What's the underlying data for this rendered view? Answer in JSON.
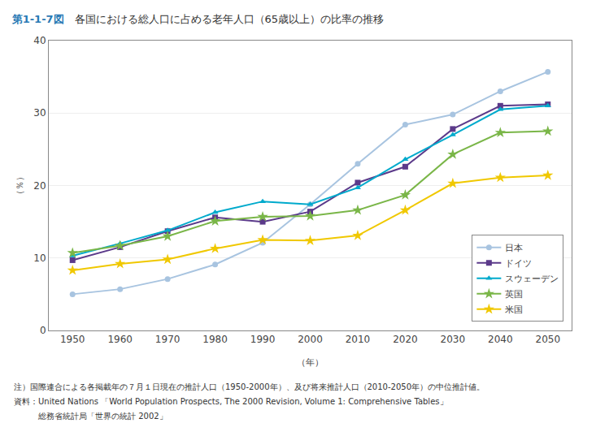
{
  "chart_data": {
    "type": "line",
    "title": "第1-1-7図",
    "subtitle": "　各国における総人口に占める老年人口（65歳以上）の比率の推移",
    "x_label": "（年）",
    "y_label": "（％）",
    "x": [
      1950,
      1960,
      1970,
      1980,
      1990,
      2000,
      2010,
      2020,
      2030,
      2040,
      2050
    ],
    "series": [
      {
        "name": "日本",
        "color": "#a8c4e0",
        "marker": "circle",
        "values": [
          5.0,
          5.7,
          7.1,
          9.1,
          12.1,
          17.4,
          23.0,
          28.4,
          29.8,
          33.0,
          35.7
        ]
      },
      {
        "name": "ドイツ",
        "color": "#5b3a8a",
        "marker": "square",
        "values": [
          9.7,
          11.5,
          13.7,
          15.6,
          15.0,
          16.4,
          20.4,
          22.6,
          27.8,
          31.0,
          31.2
        ]
      },
      {
        "name": "スウェーデン",
        "color": "#00aacc",
        "marker": "triangle-up",
        "values": [
          10.3,
          12.0,
          13.8,
          16.3,
          17.8,
          17.4,
          19.7,
          23.6,
          27.0,
          30.5,
          31.0
        ]
      },
      {
        "name": "英国",
        "color": "#7ab648",
        "marker": "star",
        "values": [
          10.7,
          11.7,
          13.0,
          15.1,
          15.7,
          15.8,
          16.6,
          18.7,
          24.3,
          27.3,
          27.5
        ]
      },
      {
        "name": "米国",
        "color": "#f0c800",
        "marker": "star",
        "values": [
          8.3,
          9.2,
          9.8,
          11.3,
          12.5,
          12.4,
          13.1,
          16.6,
          20.3,
          21.1,
          21.4
        ]
      }
    ],
    "xlim": [
      1945,
      2055
    ],
    "xticks": [
      1950,
      1960,
      1970,
      1980,
      1990,
      2000,
      2010,
      2020,
      2030,
      2040,
      2050
    ],
    "ylim": [
      0,
      40
    ],
    "yticks": [
      0,
      10,
      20,
      30,
      40
    ],
    "grid": true,
    "legend": "lower right",
    "annotations": [
      "注）国際連合による各掲載年の７月１日現在の推計人口（1950-2000年）、及び将来推計人口（2010-2050年）の中位推計値。",
      "資料：United Nations 「World Population Prospects, The 2000 Revision, Volume 1: Comprehensive Tables」",
      "　　　総務省統計局「世界の統計 2002」"
    ]
  }
}
